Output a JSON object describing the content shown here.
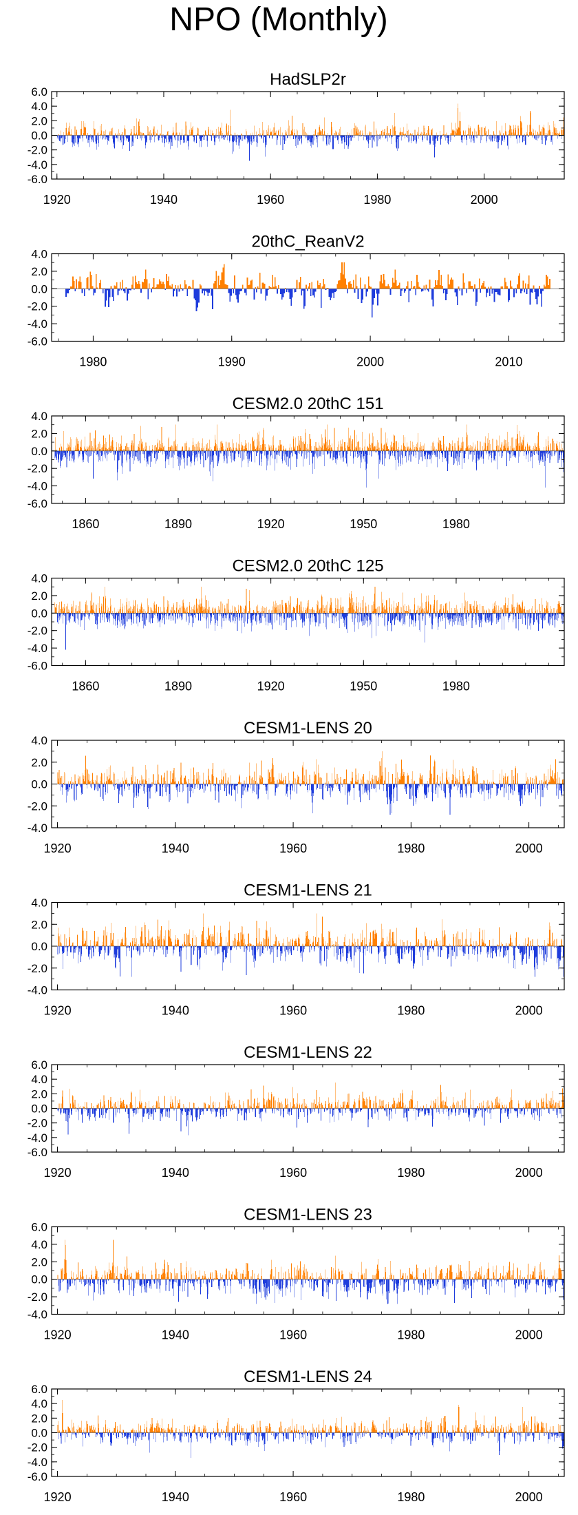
{
  "title": "NPO (Monthly)",
  "colors": {
    "positive": "#ff8000",
    "negative": "#1e3cdc",
    "axis": "#000000"
  },
  "chart_data": [
    {
      "type": "bar",
      "title": "HadSLP2r",
      "x_start": 1920,
      "x_end": 2014,
      "xlim": [
        1919,
        2015
      ],
      "xticks": [
        1920,
        1940,
        1960,
        1980,
        2000
      ],
      "ylim": [
        -6,
        6
      ],
      "yticks": [
        "6.0",
        "4.0",
        "2.0",
        "0.0",
        "-2.0",
        "-4.0",
        "-6.0"
      ],
      "amplitude": 1.0,
      "seed": 11
    },
    {
      "type": "bar",
      "title": "20thC_ReanV2",
      "x_start": 1978,
      "x_end": 2012,
      "xlim": [
        1977,
        2014
      ],
      "xticks": [
        1980,
        1990,
        2000,
        2010
      ],
      "ylim": [
        -6,
        4
      ],
      "yticks": [
        "4.0",
        "2.0",
        "0.0",
        "-2.0",
        "-4.0",
        "-6.0"
      ],
      "amplitude": 1.1,
      "seed": 23
    },
    {
      "type": "bar",
      "title": "CESM2.0 20thC 151",
      "x_start": 1850,
      "x_end": 2014,
      "xlim": [
        1849,
        2015
      ],
      "xticks": [
        1860,
        1890,
        1920,
        1950,
        1980
      ],
      "ylim": [
        -6,
        4
      ],
      "yticks": [
        "4.0",
        "2.0",
        "0.0",
        "-2.0",
        "-4.0",
        "-6.0"
      ],
      "amplitude": 1.0,
      "seed": 37
    },
    {
      "type": "bar",
      "title": "CESM2.0 20thC 125",
      "x_start": 1850,
      "x_end": 2014,
      "xlim": [
        1849,
        2015
      ],
      "xticks": [
        1860,
        1890,
        1920,
        1950,
        1980
      ],
      "ylim": [
        -6,
        4
      ],
      "yticks": [
        "4.0",
        "2.0",
        "0.0",
        "-2.0",
        "-4.0",
        "-6.0"
      ],
      "amplitude": 1.0,
      "seed": 41
    },
    {
      "type": "bar",
      "title": "CESM1-LENS 20",
      "x_start": 1920,
      "x_end": 2005,
      "xlim": [
        1919,
        2006
      ],
      "xticks": [
        1920,
        1940,
        1960,
        1980,
        2000
      ],
      "ylim": [
        -4,
        4
      ],
      "yticks": [
        "4.0",
        "2.0",
        "0.0",
        "-2.0",
        "-4.0"
      ],
      "amplitude": 1.0,
      "seed": 53
    },
    {
      "type": "bar",
      "title": "CESM1-LENS 21",
      "x_start": 1920,
      "x_end": 2005,
      "xlim": [
        1919,
        2006
      ],
      "xticks": [
        1920,
        1940,
        1960,
        1980,
        2000
      ],
      "ylim": [
        -4,
        4
      ],
      "yticks": [
        "4.0",
        "2.0",
        "0.0",
        "-2.0",
        "-4.0"
      ],
      "amplitude": 1.0,
      "seed": 67
    },
    {
      "type": "bar",
      "title": "CESM1-LENS 22",
      "x_start": 1920,
      "x_end": 2005,
      "xlim": [
        1919,
        2006
      ],
      "xticks": [
        1920,
        1940,
        1960,
        1980,
        2000
      ],
      "ylim": [
        -6,
        6
      ],
      "yticks": [
        "6.0",
        "4.0",
        "2.0",
        "0.0",
        "-2.0",
        "-4.0",
        "-6.0"
      ],
      "amplitude": 1.1,
      "seed": 71
    },
    {
      "type": "bar",
      "title": "CESM1-LENS 23",
      "x_start": 1920,
      "x_end": 2005,
      "xlim": [
        1919,
        2006
      ],
      "xticks": [
        1920,
        1940,
        1960,
        1980,
        2000
      ],
      "ylim": [
        -4,
        6
      ],
      "yticks": [
        "6.0",
        "4.0",
        "2.0",
        "0.0",
        "-2.0",
        "-4.0"
      ],
      "amplitude": 1.1,
      "seed": 83
    },
    {
      "type": "bar",
      "title": "CESM1-LENS 24",
      "x_start": 1920,
      "x_end": 2005,
      "xlim": [
        1919,
        2006
      ],
      "xticks": [
        1920,
        1940,
        1960,
        1980,
        2000
      ],
      "ylim": [
        -6,
        6
      ],
      "yticks": [
        "6.0",
        "4.0",
        "2.0",
        "0.0",
        "-2.0",
        "-4.0",
        "-6.0"
      ],
      "amplitude": 1.0,
      "seed": 97
    }
  ]
}
